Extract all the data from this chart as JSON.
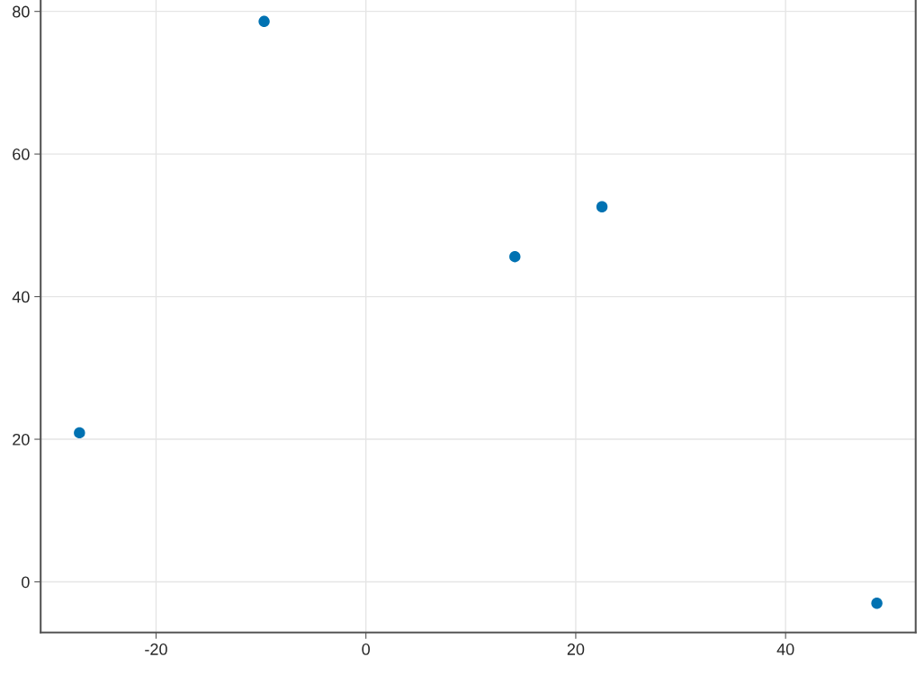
{
  "chart_data": {
    "type": "scatter",
    "x": [
      -27.3,
      -9.7,
      14.2,
      22.5,
      48.7
    ],
    "values": [
      20.9,
      78.6,
      45.6,
      52.6,
      -3.0
    ],
    "color": "#0072b2",
    "marker": "circle",
    "xlim": [
      -31.0,
      52.4
    ],
    "xticks": [
      {
        "value": -20,
        "label": "-20"
      },
      0,
      20,
      40
    ],
    "ylim": [
      -7.1,
      81.6
    ],
    "yticks": [
      0,
      20,
      40,
      60,
      80
    ],
    "grid": true
  }
}
